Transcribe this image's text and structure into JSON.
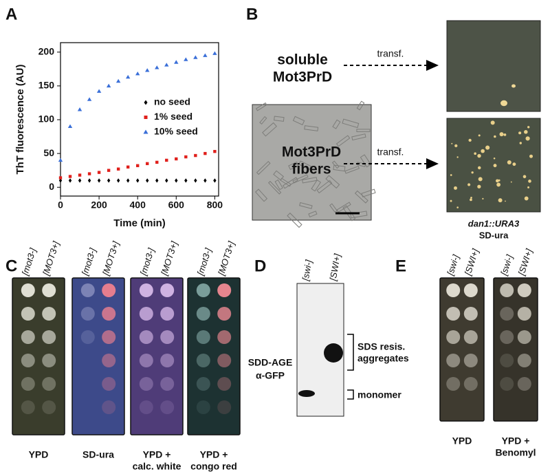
{
  "panel_letters": [
    "A",
    "B",
    "C",
    "D",
    "E"
  ],
  "chart_data": {
    "type": "scatter",
    "y_label": "ThT fluorescence (AU)",
    "x_label": "Time (min)",
    "x": [
      0,
      50,
      100,
      150,
      200,
      250,
      300,
      350,
      400,
      450,
      500,
      550,
      600,
      650,
      700,
      750,
      800
    ],
    "series": [
      {
        "name": "no seed",
        "color": "#000000",
        "marker": "diamond",
        "values": [
          10,
          10,
          10,
          10,
          10,
          10,
          10,
          10,
          10,
          10,
          10,
          10,
          10,
          10,
          10,
          10,
          10
        ]
      },
      {
        "name": "1% seed",
        "color": "#e0201c",
        "marker": "square",
        "values": [
          14,
          16,
          18,
          20,
          22,
          25,
          27,
          30,
          32,
          35,
          37,
          40,
          42,
          45,
          47,
          50,
          53
        ]
      },
      {
        "name": "10% seed",
        "color": "#3a6fd8",
        "marker": "triangle",
        "values": [
          40,
          90,
          115,
          130,
          142,
          150,
          157,
          163,
          168,
          173,
          177,
          181,
          185,
          189,
          192,
          195,
          198
        ]
      }
    ],
    "xlim": [
      0,
      820
    ],
    "ylim": [
      -13,
      214
    ],
    "xticks": [
      0,
      200,
      400,
      600,
      800
    ],
    "yticks": [
      0,
      50,
      100,
      150,
      200
    ],
    "grid": false,
    "legend": "center-right"
  },
  "panel_b": {
    "soluble": [
      "soluble",
      "Mot3PrD"
    ],
    "fibers": [
      "Mot3PrD",
      "fibers"
    ],
    "arrow_labels": [
      "transf.",
      "transf."
    ],
    "plate_caption": [
      "dan1::URA3",
      "SD-ura"
    ]
  },
  "panel_c": {
    "columns": [
      "[mot3-]",
      "[MOT3+]"
    ],
    "plates": [
      [
        "YPD"
      ],
      [
        "SD-ura"
      ],
      [
        "YPD +",
        "calc. white"
      ],
      [
        "YPD +",
        "congo red"
      ]
    ]
  },
  "panel_d": {
    "lanes": [
      "[swi-]",
      "[SWI+]"
    ],
    "method": [
      "SDD-AGE",
      "α-GFP"
    ],
    "aggregates": [
      "SDS resis.",
      "aggregates"
    ],
    "monomer": "monomer"
  },
  "panel_e": {
    "columns": [
      "[swi-]",
      "[SWI+]"
    ],
    "plates": [
      [
        "YPD"
      ],
      [
        "YPD +",
        "Benomyl"
      ]
    ]
  }
}
